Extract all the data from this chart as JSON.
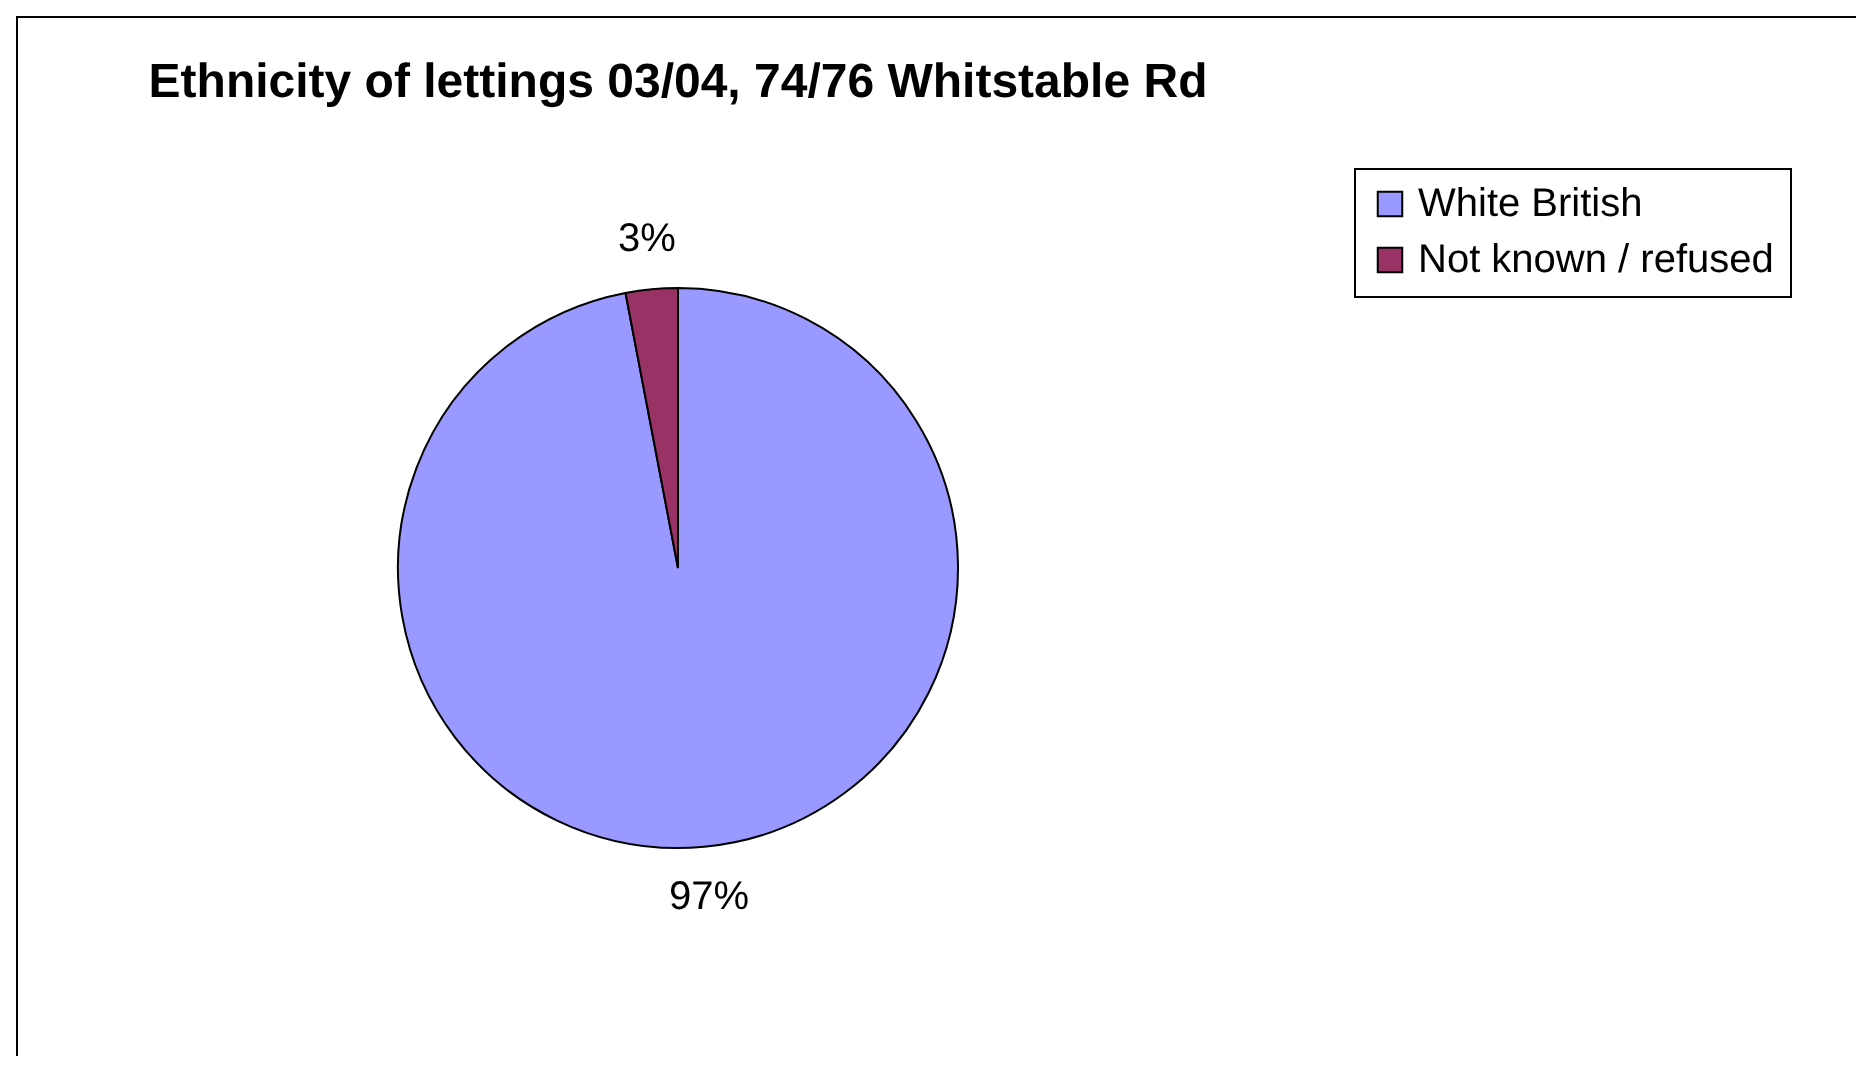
{
  "chart_data": {
    "type": "pie",
    "title": "Ethnicity of lettings 03/04, 74/76 Whitstable Rd",
    "categories": [
      "White British",
      "Not known / refused"
    ],
    "values": [
      97,
      3
    ],
    "colors": [
      "#9999ff",
      "#993366"
    ],
    "value_labels": [
      "97%",
      "3%"
    ],
    "legend": "right"
  }
}
